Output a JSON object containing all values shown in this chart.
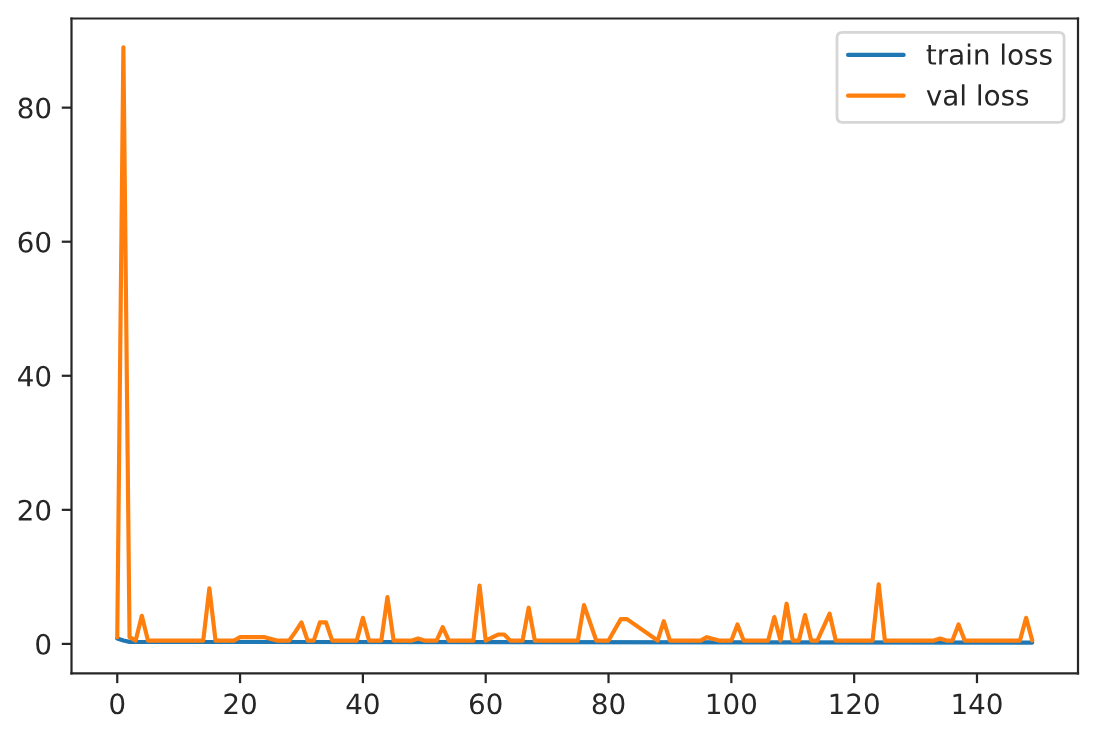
{
  "chart_data": {
    "type": "line",
    "series": [
      {
        "name": "train loss",
        "color": "#1f77b4",
        "x": [
          0,
          1,
          2,
          149
        ],
        "values": [
          0.8,
          0.5,
          0.3,
          0.2
        ]
      },
      {
        "name": "val loss",
        "color": "#ff7f0e",
        "x": [
          0,
          1,
          2,
          3,
          4,
          5,
          14,
          15,
          16,
          19,
          20,
          24,
          26,
          28,
          29,
          30,
          31,
          32,
          33,
          34,
          35,
          39,
          40,
          41,
          43,
          44,
          45,
          48,
          49,
          50,
          52,
          53,
          54,
          58,
          59,
          60,
          62,
          63,
          64,
          66,
          67,
          68,
          75,
          76,
          78,
          80,
          82,
          83,
          88,
          89,
          90,
          95,
          96,
          98,
          100,
          101,
          102,
          106,
          107,
          108,
          109,
          110,
          111,
          112,
          113,
          114,
          116,
          117,
          123,
          124,
          125,
          133,
          134,
          135,
          136,
          137,
          138,
          147,
          148,
          149
        ],
        "values": [
          1.0,
          89,
          1.0,
          0.5,
          4.2,
          0.5,
          0.5,
          8.3,
          0.5,
          0.5,
          1.0,
          1.0,
          0.5,
          0.5,
          1.8,
          3.2,
          0.5,
          0.5,
          3.2,
          3.2,
          0.5,
          0.5,
          3.9,
          0.5,
          0.5,
          7.0,
          0.5,
          0.5,
          0.8,
          0.5,
          0.5,
          2.5,
          0.5,
          0.5,
          8.7,
          0.5,
          1.4,
          1.4,
          0.5,
          0.5,
          5.4,
          0.5,
          0.5,
          5.8,
          0.5,
          0.5,
          3.7,
          3.7,
          0.5,
          3.4,
          0.5,
          0.5,
          1.0,
          0.5,
          0.5,
          2.9,
          0.5,
          0.5,
          4.0,
          0.5,
          6.0,
          0.5,
          0.5,
          4.3,
          0.5,
          0.5,
          4.5,
          0.5,
          0.5,
          8.9,
          0.5,
          0.5,
          0.8,
          0.5,
          0.5,
          2.9,
          0.5,
          0.5,
          3.9,
          0.5
        ]
      }
    ],
    "xlim": [
      -7.45,
      156.45
    ],
    "ylim": [
      -4.4,
      93.3
    ],
    "xticks": [
      0,
      20,
      40,
      60,
      80,
      100,
      120,
      140
    ],
    "yticks": [
      0,
      20,
      40,
      60,
      80
    ],
    "legend": "top right",
    "grid": false
  }
}
